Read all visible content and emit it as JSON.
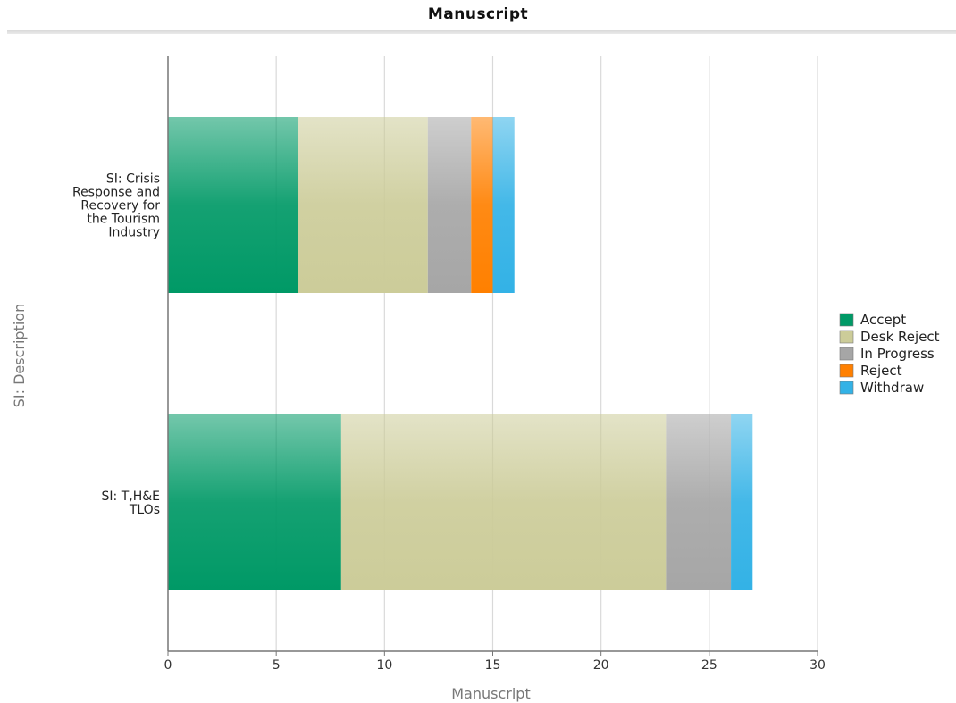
{
  "chart_data": {
    "type": "bar",
    "orientation": "horizontal",
    "stacked": true,
    "title": "Manuscript",
    "xlabel": "Manuscript",
    "ylabel": "SI: Description",
    "xlim": [
      0,
      30
    ],
    "xticks": [
      0,
      5,
      10,
      15,
      20,
      25,
      30
    ],
    "grid": true,
    "legend_position": "right",
    "categories": [
      [
        "SI: Crisis",
        "Response and",
        "Recovery for",
        "the Tourism",
        "Industry"
      ],
      [
        "SI: T,H&E",
        "TLOs"
      ]
    ],
    "series": [
      {
        "name": "Accept",
        "color": "#009966",
        "values": [
          6,
          8
        ]
      },
      {
        "name": "Desk Reject",
        "color": "#cccc99",
        "values": [
          6,
          15
        ]
      },
      {
        "name": "In Progress",
        "color": "#a6a6a6",
        "values": [
          2,
          3
        ]
      },
      {
        "name": "Reject",
        "color": "#ff8000",
        "values": [
          1,
          0
        ]
      },
      {
        "name": "Withdraw",
        "color": "#33b2e6",
        "values": [
          1,
          1
        ]
      }
    ]
  }
}
